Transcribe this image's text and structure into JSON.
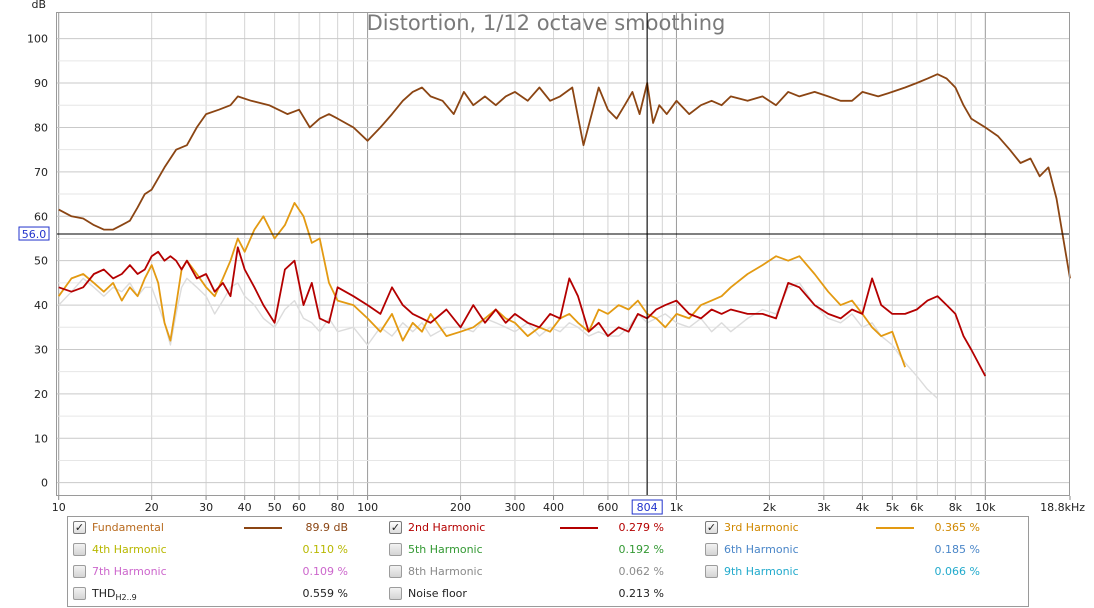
{
  "chart_data": {
    "type": "line",
    "title": "Distortion, 1/12 octave smoothing",
    "ylabel": "dB",
    "xunit": "Hz",
    "xscale": "log",
    "xlim": [
      9.8,
      18800
    ],
    "ylim": [
      -3,
      106
    ],
    "grid": true,
    "yticks": [
      0,
      10,
      20,
      30,
      40,
      50,
      60,
      70,
      80,
      90,
      100
    ],
    "xticks": [
      {
        "v": 10,
        "label": "10"
      },
      {
        "v": 20,
        "label": "20"
      },
      {
        "v": 30,
        "label": "30"
      },
      {
        "v": 40,
        "label": "40"
      },
      {
        "v": 50,
        "label": "50"
      },
      {
        "v": 60,
        "label": "60"
      },
      {
        "v": 80,
        "label": "80"
      },
      {
        "v": 100,
        "label": "100"
      },
      {
        "v": 200,
        "label": "200"
      },
      {
        "v": 300,
        "label": "300"
      },
      {
        "v": 400,
        "label": "400"
      },
      {
        "v": 600,
        "label": "600"
      },
      {
        "v": 1000,
        "label": "1k"
      },
      {
        "v": 2000,
        "label": "2k"
      },
      {
        "v": 3000,
        "label": "3k"
      },
      {
        "v": 4000,
        "label": "4k"
      },
      {
        "v": 5000,
        "label": "5k"
      },
      {
        "v": 6000,
        "label": "6k"
      },
      {
        "v": 8000,
        "label": "8k"
      },
      {
        "v": 10000,
        "label": "10k"
      },
      {
        "v": 18800,
        "label": "18.8kHz"
      }
    ],
    "cursor": {
      "x": 804,
      "y": 56.0,
      "x_label": "804",
      "y_label": "56.0"
    },
    "series": [
      {
        "name": "Fundamental",
        "color": "#8b4513",
        "x": [
          10,
          11,
          12,
          13,
          14,
          15,
          16,
          17,
          18,
          19,
          20,
          22,
          24,
          26,
          28,
          30,
          33,
          36,
          38,
          42,
          48,
          55,
          60,
          65,
          70,
          75,
          80,
          90,
          100,
          110,
          120,
          130,
          140,
          150,
          160,
          175,
          190,
          205,
          220,
          240,
          260,
          280,
          300,
          330,
          360,
          390,
          420,
          460,
          500,
          560,
          600,
          640,
          680,
          720,
          760,
          804,
          840,
          880,
          930,
          1000,
          1100,
          1200,
          1300,
          1400,
          1500,
          1700,
          1900,
          2100,
          2300,
          2500,
          2800,
          3100,
          3400,
          3700,
          4000,
          4500,
          5000,
          5500,
          6000,
          6500,
          7000,
          7500,
          8000,
          8500,
          9000,
          10000,
          11000,
          12000,
          13000,
          14000,
          15000,
          16000,
          17000,
          18800
        ],
        "y": [
          61.5,
          60,
          59.5,
          58,
          57,
          57,
          58,
          59,
          62,
          65,
          66,
          71,
          75,
          76,
          80,
          83,
          84,
          85,
          87,
          86,
          85,
          83,
          84,
          80,
          82,
          83,
          82,
          80,
          77,
          80,
          83,
          86,
          88,
          89,
          87,
          86,
          83,
          88,
          85,
          87,
          85,
          87,
          88,
          86,
          89,
          86,
          87,
          89,
          76,
          89,
          84,
          82,
          85,
          88,
          83,
          90,
          81,
          85,
          83,
          86,
          83,
          85,
          86,
          85,
          87,
          86,
          87,
          85,
          88,
          87,
          88,
          87,
          86,
          86,
          88,
          87,
          88,
          89,
          90,
          91,
          92,
          91,
          89,
          85,
          82,
          80,
          78,
          75,
          72,
          73,
          69,
          71,
          64,
          46
        ]
      },
      {
        "name": "2nd Harmonic",
        "color": "#b40000",
        "x": [
          10,
          11,
          12,
          13,
          14,
          15,
          16,
          17,
          18,
          19,
          20,
          21,
          22,
          23,
          24,
          25,
          26,
          28,
          30,
          32,
          34,
          36,
          38,
          40,
          43,
          46,
          50,
          54,
          58,
          62,
          66,
          70,
          75,
          80,
          90,
          100,
          110,
          120,
          130,
          140,
          150,
          160,
          180,
          200,
          220,
          240,
          260,
          280,
          300,
          330,
          360,
          390,
          420,
          450,
          480,
          520,
          560,
          600,
          650,
          700,
          750,
          804,
          860,
          920,
          1000,
          1100,
          1200,
          1300,
          1400,
          1500,
          1700,
          1900,
          2100,
          2300,
          2500,
          2800,
          3100,
          3400,
          3700,
          4000,
          4300,
          4600,
          5000,
          5500,
          6000,
          6500,
          7000,
          7500,
          8000,
          8500,
          9000,
          10000
        ],
        "y": [
          44,
          43,
          44,
          47,
          48,
          46,
          47,
          49,
          47,
          48,
          51,
          52,
          50,
          51,
          50,
          48,
          50,
          46,
          47,
          43,
          45,
          42,
          53,
          48,
          44,
          40,
          36,
          48,
          50,
          40,
          45,
          37,
          36,
          44,
          42,
          40,
          38,
          44,
          40,
          38,
          37,
          36,
          39,
          35,
          40,
          36,
          39,
          36,
          38,
          36,
          35,
          38,
          37,
          46,
          42,
          34,
          36,
          33,
          35,
          34,
          38,
          37,
          39,
          40,
          41,
          38,
          37,
          39,
          38,
          39,
          38,
          38,
          37,
          45,
          44,
          40,
          38,
          37,
          39,
          38,
          46,
          40,
          38,
          38,
          39,
          41,
          42,
          40,
          38,
          33,
          30,
          24
        ]
      },
      {
        "name": "3rd Harmonic",
        "color": "#e39a12",
        "x": [
          10,
          11,
          12,
          13,
          14,
          15,
          16,
          17,
          18,
          19,
          20,
          21,
          22,
          23,
          24,
          25,
          26,
          28,
          30,
          32,
          34,
          36,
          38,
          40,
          43,
          46,
          50,
          54,
          58,
          62,
          66,
          70,
          75,
          80,
          90,
          100,
          110,
          120,
          130,
          140,
          150,
          160,
          180,
          200,
          220,
          240,
          260,
          280,
          300,
          330,
          360,
          390,
          420,
          450,
          480,
          520,
          560,
          600,
          650,
          700,
          750,
          804,
          860,
          920,
          1000,
          1100,
          1200,
          1300,
          1400,
          1500,
          1700,
          1900,
          2100,
          2300,
          2500,
          2800,
          3100,
          3400,
          3700,
          4000,
          4300,
          4600,
          5000,
          5500
        ],
        "y": [
          42,
          46,
          47,
          45,
          43,
          45,
          41,
          44,
          42,
          46,
          49,
          45,
          36,
          32,
          40,
          48,
          50,
          47,
          44,
          42,
          46,
          50,
          55,
          52,
          57,
          60,
          55,
          58,
          63,
          60,
          54,
          55,
          45,
          41,
          40,
          37,
          34,
          38,
          32,
          36,
          34,
          38,
          33,
          34,
          35,
          37,
          39,
          37,
          36,
          33,
          35,
          34,
          37,
          38,
          36,
          34,
          39,
          38,
          40,
          39,
          41,
          38,
          37,
          35,
          38,
          37,
          40,
          41,
          42,
          44,
          47,
          49,
          51,
          50,
          51,
          47,
          43,
          40,
          41,
          38,
          35,
          33,
          34,
          26
        ]
      },
      {
        "name": "Noise floor",
        "color": "#dcdcdc",
        "x": [
          10,
          11,
          12,
          13,
          14,
          15,
          16,
          17,
          18,
          19,
          20,
          21,
          22,
          23,
          24,
          25,
          26,
          28,
          30,
          32,
          34,
          36,
          38,
          40,
          43,
          46,
          50,
          54,
          58,
          62,
          66,
          70,
          75,
          80,
          90,
          100,
          110,
          120,
          130,
          140,
          150,
          160,
          180,
          200,
          220,
          240,
          260,
          280,
          300,
          330,
          360,
          390,
          420,
          450,
          480,
          520,
          560,
          600,
          650,
          700,
          750,
          804,
          860,
          920,
          1000,
          1100,
          1200,
          1300,
          1400,
          1500,
          1700,
          1900,
          2100,
          2300,
          2500,
          2800,
          3100,
          3400,
          3700,
          4000,
          4300,
          4600,
          5000,
          5500,
          6000,
          6500,
          7000
        ],
        "y": [
          40,
          43,
          46,
          44,
          42,
          44,
          43,
          45,
          42,
          44,
          44,
          40,
          36,
          31,
          38,
          44,
          46,
          44,
          42,
          38,
          41,
          44,
          45,
          42,
          40,
          37,
          35,
          39,
          41,
          37,
          36,
          34,
          37,
          34,
          35,
          31,
          35,
          33,
          36,
          34,
          36,
          33,
          35,
          35,
          34,
          37,
          36,
          35,
          34,
          36,
          33,
          35,
          34,
          36,
          35,
          33,
          34,
          33,
          33,
          35,
          38,
          36,
          37,
          38,
          36,
          35,
          37,
          34,
          36,
          34,
          37,
          39,
          38,
          44,
          45,
          40,
          37,
          36,
          38,
          35,
          36,
          33,
          31,
          27,
          24,
          21,
          19
        ]
      }
    ]
  },
  "legend": {
    "rows": [
      [
        {
          "name": "Fundamental",
          "color": "#b86a1e",
          "value": "89.9 dB",
          "value_color": "#8b4513",
          "checked": true,
          "swatch": "#8b4513"
        },
        {
          "name": "2nd Harmonic",
          "color": "#b40000",
          "value": "0.279 %",
          "value_color": "#b40000",
          "checked": true,
          "swatch": "#b40000"
        },
        {
          "name": "3rd Harmonic",
          "color": "#d08800",
          "value": "0.365 %",
          "value_color": "#d08800",
          "checked": true,
          "swatch": "#e39a12"
        }
      ],
      [
        {
          "name": "4th Harmonic",
          "color": "#b8b800",
          "value": "0.110 %",
          "value_color": "#b8b800",
          "checked": false,
          "swatch": ""
        },
        {
          "name": "5th Harmonic",
          "color": "#339933",
          "value": "0.192 %",
          "value_color": "#339933",
          "checked": false,
          "swatch": ""
        },
        {
          "name": "6th Harmonic",
          "color": "#4a86c8",
          "value": "0.185 %",
          "value_color": "#4a86c8",
          "checked": false,
          "swatch": ""
        }
      ],
      [
        {
          "name": "7th Harmonic",
          "color": "#cc66cc",
          "value": "0.109 %",
          "value_color": "#cc66cc",
          "checked": false,
          "swatch": ""
        },
        {
          "name": "8th Harmonic",
          "color": "#8a8a8a",
          "value": "0.062 %",
          "value_color": "#8a8a8a",
          "checked": false,
          "swatch": ""
        },
        {
          "name": "9th Harmonic",
          "color": "#22aacc",
          "value": "0.066 %",
          "value_color": "#22aacc",
          "checked": false,
          "swatch": ""
        }
      ],
      [
        {
          "name": "THD",
          "sub": "H2..9",
          "color": "#222222",
          "value": "0.559 %",
          "value_color": "#222222",
          "checked": false,
          "swatch": ""
        },
        {
          "name": "Noise floor",
          "color": "#222222",
          "value": "0.213 %",
          "value_color": "#222222",
          "checked": false,
          "swatch": ""
        }
      ]
    ]
  }
}
